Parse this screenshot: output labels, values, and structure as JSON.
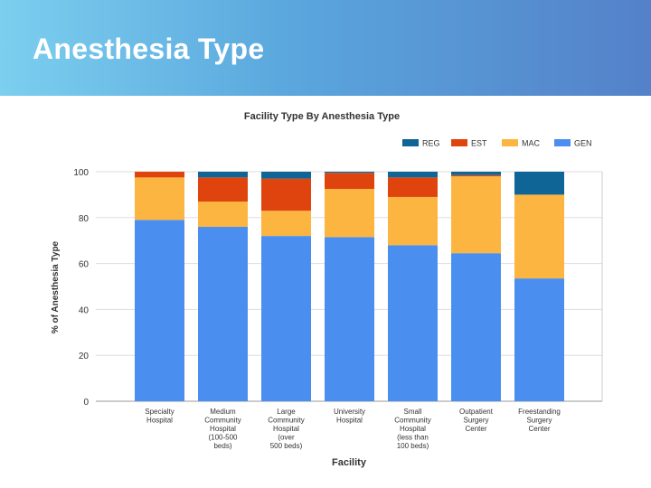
{
  "slide": {
    "title": "Anesthesia Type"
  },
  "chart_data": {
    "type": "bar",
    "stacked": true,
    "title": "Facility Type By Anesthesia Type",
    "xlabel": "Facility",
    "ylabel": "% of Anesthesia Type",
    "ylim": [
      0,
      100
    ],
    "yticks": [
      0,
      20,
      40,
      60,
      80,
      100
    ],
    "grid": true,
    "legend_position": "top-right",
    "categories": [
      [
        "Specialty",
        "Hospital"
      ],
      [
        "Medium",
        "Community",
        "Hospital",
        "(100-500",
        "beds)"
      ],
      [
        "Large",
        "Community",
        "Hospital",
        "(over",
        "500 beds)"
      ],
      [
        "University",
        "Hospital"
      ],
      [
        "Small",
        "Community",
        "Hospital",
        "(less than",
        "100 beds)"
      ],
      [
        "Outpatient",
        "Surgery",
        "Center"
      ],
      [
        "Freestanding",
        "Surgery",
        "Center"
      ]
    ],
    "series": [
      {
        "name": "GEN",
        "color": "#4a8ff0",
        "values": [
          79,
          76,
          72,
          71.5,
          68,
          64.5,
          53.5
        ]
      },
      {
        "name": "MAC",
        "color": "#fbb540",
        "values": [
          18.5,
          11,
          11,
          21,
          21,
          33.5,
          36.5
        ]
      },
      {
        "name": "EST",
        "color": "#e0440e",
        "values": [
          2.5,
          10.5,
          14,
          7,
          8.5,
          0.5,
          0
        ]
      },
      {
        "name": "REG",
        "color": "#0f6596",
        "values": [
          0,
          2.5,
          3,
          0.5,
          2.5,
          1.5,
          10
        ]
      }
    ],
    "legend_order": [
      "REG",
      "EST",
      "MAC",
      "GEN"
    ]
  }
}
